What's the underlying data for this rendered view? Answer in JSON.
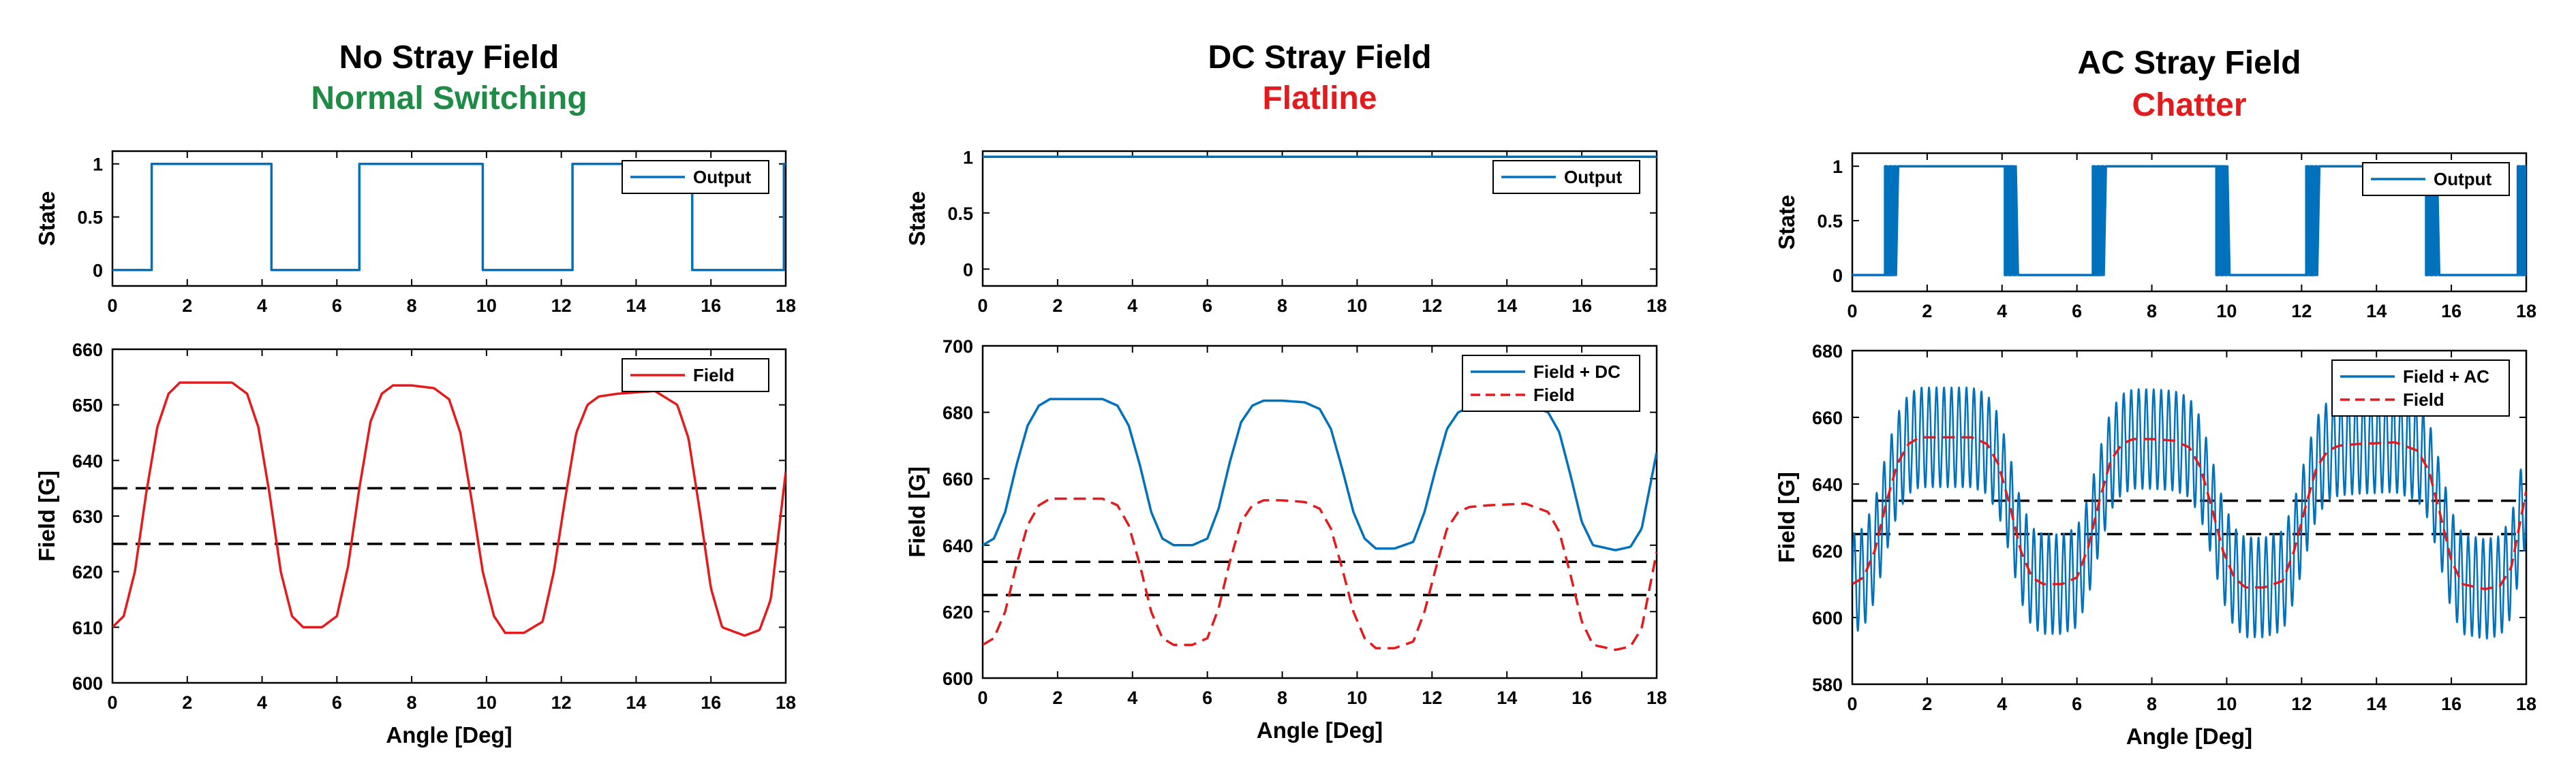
{
  "colors": {
    "blue": "#0072BD",
    "red": "#E41A1C",
    "green": "#1E8C45",
    "black": "#000000"
  },
  "chart_data": [
    {
      "type": "line",
      "panel": "state",
      "title": "No Stray Field",
      "subtitle": "Normal Switching",
      "subtitle_color": "#1E8C45",
      "xlabel": "",
      "ylabel": "State",
      "xlim": [
        0,
        18
      ],
      "ylim": [
        -0.15,
        1.12
      ],
      "xticks": [
        0,
        2,
        4,
        6,
        8,
        10,
        12,
        14,
        16,
        18
      ],
      "yticks": [
        0,
        0.5,
        1
      ],
      "legend": "top-right",
      "series": [
        {
          "name": "Output",
          "color": "#0072BD",
          "style": "solid",
          "chatter": 0,
          "x": [
            0,
            1.05,
            1.05,
            4.25,
            4.25,
            6.6,
            6.6,
            9.9,
            9.9,
            12.3,
            12.3,
            15.5,
            15.5,
            17.95,
            17.95,
            18
          ],
          "y": [
            0,
            0,
            1,
            1,
            0,
            0,
            1,
            1,
            0,
            0,
            1,
            1,
            0,
            0,
            1,
            1
          ]
        }
      ]
    },
    {
      "type": "line",
      "panel": "field",
      "xlabel": "Angle [Deg]",
      "ylabel": "Field [G]",
      "xlim": [
        0,
        18
      ],
      "ylim": [
        600,
        660
      ],
      "xticks": [
        0,
        2,
        4,
        6,
        8,
        10,
        12,
        14,
        16,
        18
      ],
      "yticks": [
        600,
        610,
        620,
        630,
        640,
        650,
        660
      ],
      "legend": "top-right",
      "thresholds": [
        635,
        625
      ],
      "series": [
        {
          "name": "Field",
          "color": "#E41A1C",
          "style": "solid",
          "ac_amplitude": 0,
          "x": [
            0,
            0.3,
            0.6,
            0.9,
            1.2,
            1.5,
            1.8,
            2.5,
            3.2,
            3.6,
            3.9,
            4.2,
            4.5,
            4.8,
            5.1,
            5.6,
            6.0,
            6.3,
            6.6,
            6.9,
            7.2,
            7.5,
            8.0,
            8.6,
            9.0,
            9.3,
            9.6,
            9.9,
            10.2,
            10.5,
            11.0,
            11.5,
            11.8,
            12.1,
            12.4,
            12.7,
            13.0,
            13.5,
            14.5,
            15.1,
            15.4,
            15.7,
            16.0,
            16.3,
            16.9,
            17.3,
            17.6,
            18.0
          ],
          "y": [
            610,
            612,
            620,
            634,
            646,
            652,
            654,
            654,
            654,
            652,
            646,
            634,
            620,
            612,
            610,
            610,
            612,
            621,
            635,
            647,
            652,
            653.5,
            653.5,
            653,
            651,
            645,
            633,
            620,
            612,
            609,
            609,
            611,
            620,
            633,
            645,
            650,
            651.5,
            652,
            652.5,
            650,
            644,
            631,
            617,
            610,
            608.5,
            609.5,
            615,
            638
          ]
        }
      ]
    },
    {
      "type": "line",
      "panel": "state",
      "title": "DC Stray Field",
      "subtitle": "Flatline",
      "subtitle_color": "#E41A1C",
      "xlabel": "",
      "ylabel": "State",
      "xlim": [
        0,
        18
      ],
      "ylim": [
        -0.15,
        1.05
      ],
      "xticks": [
        0,
        2,
        4,
        6,
        8,
        10,
        12,
        14,
        16,
        18
      ],
      "yticks": [
        0,
        0.5,
        1
      ],
      "legend": "top-right",
      "series": [
        {
          "name": "Output",
          "color": "#0072BD",
          "style": "solid",
          "chatter": 0,
          "x": [
            0,
            18
          ],
          "y": [
            1,
            1
          ]
        }
      ]
    },
    {
      "type": "line",
      "panel": "field",
      "xlabel": "Angle [Deg]",
      "ylabel": "Field [G]",
      "xlim": [
        0,
        18
      ],
      "ylim": [
        600,
        700
      ],
      "xticks": [
        0,
        2,
        4,
        6,
        8,
        10,
        12,
        14,
        16,
        18
      ],
      "yticks": [
        600,
        620,
        640,
        660,
        680,
        700
      ],
      "legend": "top-right",
      "thresholds": [
        635,
        625
      ],
      "series": [
        {
          "name": "Field + DC",
          "color": "#0072BD",
          "style": "solid",
          "ac_amplitude": 0,
          "x": [
            0,
            0.3,
            0.6,
            0.9,
            1.2,
            1.5,
            1.8,
            2.5,
            3.2,
            3.6,
            3.9,
            4.2,
            4.5,
            4.8,
            5.1,
            5.6,
            6.0,
            6.3,
            6.6,
            6.9,
            7.2,
            7.5,
            8.0,
            8.6,
            9.0,
            9.3,
            9.6,
            9.9,
            10.2,
            10.5,
            11.0,
            11.5,
            11.8,
            12.1,
            12.4,
            12.7,
            13.0,
            13.5,
            14.5,
            15.1,
            15.4,
            15.7,
            16.0,
            16.3,
            16.9,
            17.3,
            17.6,
            18.0
          ],
          "y": [
            640,
            642,
            650,
            664,
            676,
            682,
            684,
            684,
            684,
            682,
            676,
            664,
            650,
            642,
            640,
            640,
            642,
            651,
            665,
            677,
            682,
            683.5,
            683.5,
            683,
            681,
            675,
            663,
            650,
            642,
            639,
            639,
            641,
            650,
            663,
            675,
            680,
            681.5,
            682,
            682.5,
            680,
            674,
            661,
            647,
            640,
            638.5,
            639.5,
            645,
            668
          ]
        },
        {
          "name": "Field",
          "color": "#E41A1C",
          "style": "dashed",
          "ac_amplitude": 0,
          "x": [
            0,
            0.3,
            0.6,
            0.9,
            1.2,
            1.5,
            1.8,
            2.5,
            3.2,
            3.6,
            3.9,
            4.2,
            4.5,
            4.8,
            5.1,
            5.6,
            6.0,
            6.3,
            6.6,
            6.9,
            7.2,
            7.5,
            8.0,
            8.6,
            9.0,
            9.3,
            9.6,
            9.9,
            10.2,
            10.5,
            11.0,
            11.5,
            11.8,
            12.1,
            12.4,
            12.7,
            13.0,
            13.5,
            14.5,
            15.1,
            15.4,
            15.7,
            16.0,
            16.3,
            16.9,
            17.3,
            17.6,
            18.0
          ],
          "y": [
            610,
            612,
            620,
            634,
            646,
            652,
            654,
            654,
            654,
            652,
            646,
            634,
            620,
            612,
            610,
            610,
            612,
            621,
            635,
            647,
            652,
            653.5,
            653.5,
            653,
            651,
            645,
            633,
            620,
            612,
            609,
            609,
            611,
            620,
            633,
            645,
            650,
            651.5,
            652,
            652.5,
            650,
            644,
            631,
            617,
            610,
            608.5,
            609.5,
            615,
            638
          ]
        }
      ]
    },
    {
      "type": "line",
      "panel": "state",
      "title": "AC Stray Field",
      "subtitle": "Chatter",
      "subtitle_color": "#E41A1C",
      "xlabel": "",
      "ylabel": "State",
      "xlim": [
        0,
        18
      ],
      "ylim": [
        -0.15,
        1.12
      ],
      "xticks": [
        0,
        2,
        4,
        6,
        8,
        10,
        12,
        14,
        16,
        18
      ],
      "yticks": [
        0,
        0.5,
        1
      ],
      "legend": "top-right",
      "series": [
        {
          "name": "Output",
          "color": "#0072BD",
          "style": "solid",
          "chatter": 0.35,
          "x": [
            0,
            1.05,
            1.05,
            4.25,
            4.25,
            6.6,
            6.6,
            9.9,
            9.9,
            12.3,
            12.3,
            15.5,
            15.5,
            17.95,
            17.95,
            18
          ],
          "y": [
            0,
            0,
            1,
            1,
            0,
            0,
            1,
            1,
            0,
            0,
            1,
            1,
            0,
            0,
            1,
            1
          ]
        }
      ]
    },
    {
      "type": "line",
      "panel": "field",
      "xlabel": "Angle [Deg]",
      "ylabel": "Field [G]",
      "xlim": [
        0,
        18
      ],
      "ylim": [
        580,
        680
      ],
      "xticks": [
        0,
        2,
        4,
        6,
        8,
        10,
        12,
        14,
        16,
        18
      ],
      "yticks": [
        580,
        600,
        620,
        640,
        660,
        680
      ],
      "legend": "top-right",
      "thresholds": [
        635,
        625
      ],
      "series": [
        {
          "name": "Field + AC",
          "color": "#0072BD",
          "style": "solid",
          "ac_amplitude": 15,
          "ac_cycles_per_deg": 5,
          "x": [
            0,
            0.3,
            0.6,
            0.9,
            1.2,
            1.5,
            1.8,
            2.5,
            3.2,
            3.6,
            3.9,
            4.2,
            4.5,
            4.8,
            5.1,
            5.6,
            6.0,
            6.3,
            6.6,
            6.9,
            7.2,
            7.5,
            8.0,
            8.6,
            9.0,
            9.3,
            9.6,
            9.9,
            10.2,
            10.5,
            11.0,
            11.5,
            11.8,
            12.1,
            12.4,
            12.7,
            13.0,
            13.5,
            14.5,
            15.1,
            15.4,
            15.7,
            16.0,
            16.3,
            16.9,
            17.3,
            17.6,
            18.0
          ],
          "y": [
            610,
            612,
            620,
            634,
            646,
            652,
            654,
            654,
            654,
            652,
            646,
            634,
            620,
            612,
            610,
            610,
            612,
            621,
            635,
            647,
            652,
            653.5,
            653.5,
            653,
            651,
            645,
            633,
            620,
            612,
            609,
            609,
            611,
            620,
            633,
            645,
            650,
            651.5,
            652,
            652.5,
            650,
            644,
            631,
            617,
            610,
            608.5,
            609.5,
            615,
            638
          ]
        },
        {
          "name": "Field",
          "color": "#E41A1C",
          "style": "dashed",
          "ac_amplitude": 0,
          "x": [
            0,
            0.3,
            0.6,
            0.9,
            1.2,
            1.5,
            1.8,
            2.5,
            3.2,
            3.6,
            3.9,
            4.2,
            4.5,
            4.8,
            5.1,
            5.6,
            6.0,
            6.3,
            6.6,
            6.9,
            7.2,
            7.5,
            8.0,
            8.6,
            9.0,
            9.3,
            9.6,
            9.9,
            10.2,
            10.5,
            11.0,
            11.5,
            11.8,
            12.1,
            12.4,
            12.7,
            13.0,
            13.5,
            14.5,
            15.1,
            15.4,
            15.7,
            16.0,
            16.3,
            16.9,
            17.3,
            17.6,
            18.0
          ],
          "y": [
            610,
            612,
            620,
            634,
            646,
            652,
            654,
            654,
            654,
            652,
            646,
            634,
            620,
            612,
            610,
            610,
            612,
            621,
            635,
            647,
            652,
            653.5,
            653.5,
            653,
            651,
            645,
            633,
            620,
            612,
            609,
            609,
            611,
            620,
            633,
            645,
            650,
            651.5,
            652,
            652.5,
            650,
            644,
            631,
            617,
            610,
            608.5,
            609.5,
            615,
            638
          ]
        }
      ]
    }
  ]
}
